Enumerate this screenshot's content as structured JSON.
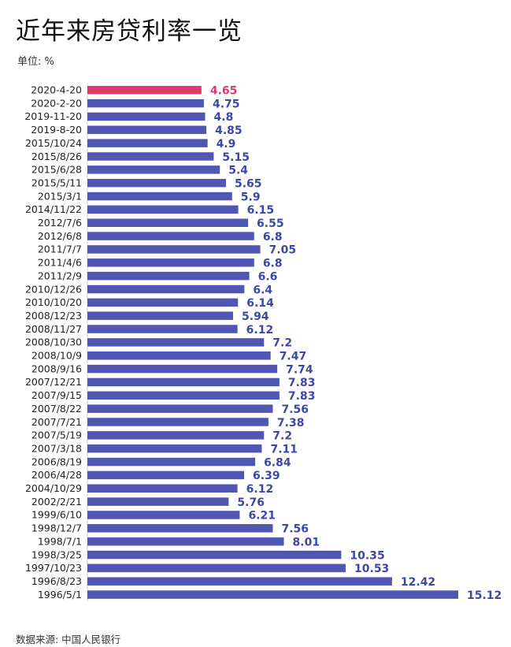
{
  "title": "近年来房贷利率一览",
  "unit_label": "单位: %",
  "source": "数据来源: 中国人民银行",
  "colors": {
    "bar": "#5057b3",
    "highlight": "#dd3a6e",
    "label": "#3d47a6"
  },
  "chart_data": {
    "type": "bar",
    "orientation": "horizontal",
    "categories": [
      "2020-4-20",
      "2020-2-20",
      "2019-11-20",
      "2019-8-20",
      "2015/10/24",
      "2015/8/26",
      "2015/6/28",
      "2015/5/11",
      "2015/3/1",
      "2014/11/22",
      "2012/7/6",
      "2012/6/8",
      "2011/7/7",
      "2011/4/6",
      "2011/2/9",
      "2010/12/26",
      "2010/10/20",
      "2008/12/23",
      "2008/11/27",
      "2008/10/30",
      "2008/10/9",
      "2008/9/16",
      "2007/12/21",
      "2007/9/15",
      "2007/8/22",
      "2007/7/21",
      "2007/5/19",
      "2007/3/18",
      "2006/8/19",
      "2006/4/28",
      "2004/10/29",
      "2002/2/21",
      "1999/6/10",
      "1998/12/7",
      "1998/7/1",
      "1998/3/25",
      "1997/10/23",
      "1996/8/23",
      "1996/5/1"
    ],
    "values": [
      4.65,
      4.75,
      4.8,
      4.85,
      4.9,
      5.15,
      5.4,
      5.65,
      5.9,
      6.15,
      6.55,
      6.8,
      7.05,
      6.8,
      6.6,
      6.4,
      6.14,
      5.94,
      6.12,
      7.2,
      7.47,
      7.74,
      7.83,
      7.83,
      7.56,
      7.38,
      7.2,
      7.11,
      6.84,
      6.39,
      6.12,
      5.76,
      6.21,
      7.56,
      8.01,
      10.35,
      10.53,
      12.42,
      15.12
    ],
    "value_labels": [
      "4.65",
      "4.75",
      "4.8",
      "4.85",
      "4.9",
      "5.15",
      "5.4",
      "5.65",
      "5.9",
      "6.15",
      "6.55",
      "6.8",
      "7.05",
      "6.8",
      "6.6",
      "6.4",
      "6.14",
      "5.94",
      "6.12",
      "7.2",
      "7.47",
      "7.74",
      "7.83",
      "7.83",
      "7.56",
      "7.38",
      "7.2",
      "7.11",
      "6.84",
      "6.39",
      "6.12",
      "5.76",
      "6.21",
      "7.56",
      "8.01",
      "10.35",
      "10.53",
      "12.42",
      "15.12"
    ],
    "highlight_index": 0,
    "xlim": [
      0,
      15.12
    ],
    "grid": false,
    "legend": "none"
  }
}
